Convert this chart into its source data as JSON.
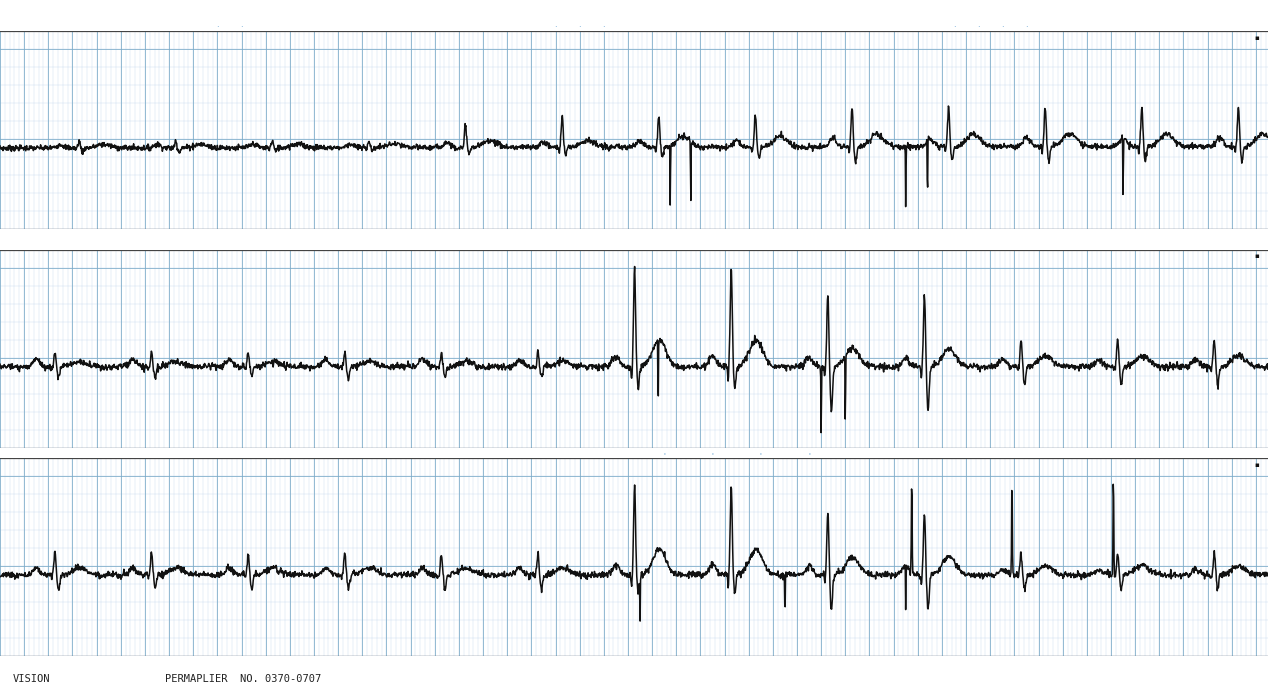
{
  "bg_color": "#ffffff",
  "grid_minor_color": "#b8d0e8",
  "grid_major_color": "#7aaac8",
  "ecg_color": "#111111",
  "ecg_linewidth": 1.1,
  "n_rows": 3,
  "figsize": [
    12.68,
    6.94
  ],
  "dpi": 100,
  "bottom_text_left": "VISION",
  "bottom_text_right": "PERMAPLIER  NO. 0370-0707",
  "separator_color": "#444444",
  "top_annotation_color": "#5599cc"
}
